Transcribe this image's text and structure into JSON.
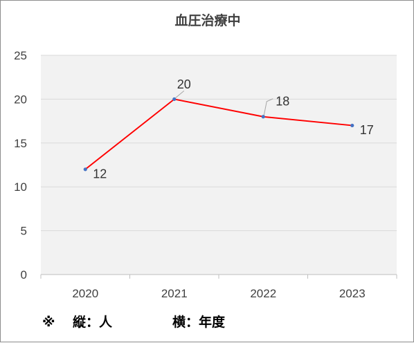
{
  "chart_data": {
    "type": "line",
    "title": "血圧治療中",
    "categories": [
      "2020",
      "2021",
      "2022",
      "2023"
    ],
    "series": [
      {
        "values": [
          12,
          20,
          18,
          17
        ],
        "color": "#ff0000",
        "marker_color": "#4472c4"
      }
    ],
    "ylim": [
      0,
      25
    ],
    "yticks": [
      0,
      5,
      10,
      15,
      20,
      25
    ],
    "grid": true,
    "legend": "none",
    "plot_background": "#f2f2f2",
    "gridline_color": "#d9d9d9"
  },
  "footnote": {
    "mark": "※",
    "vertical": "縦：人",
    "horizontal": "横：年度"
  }
}
